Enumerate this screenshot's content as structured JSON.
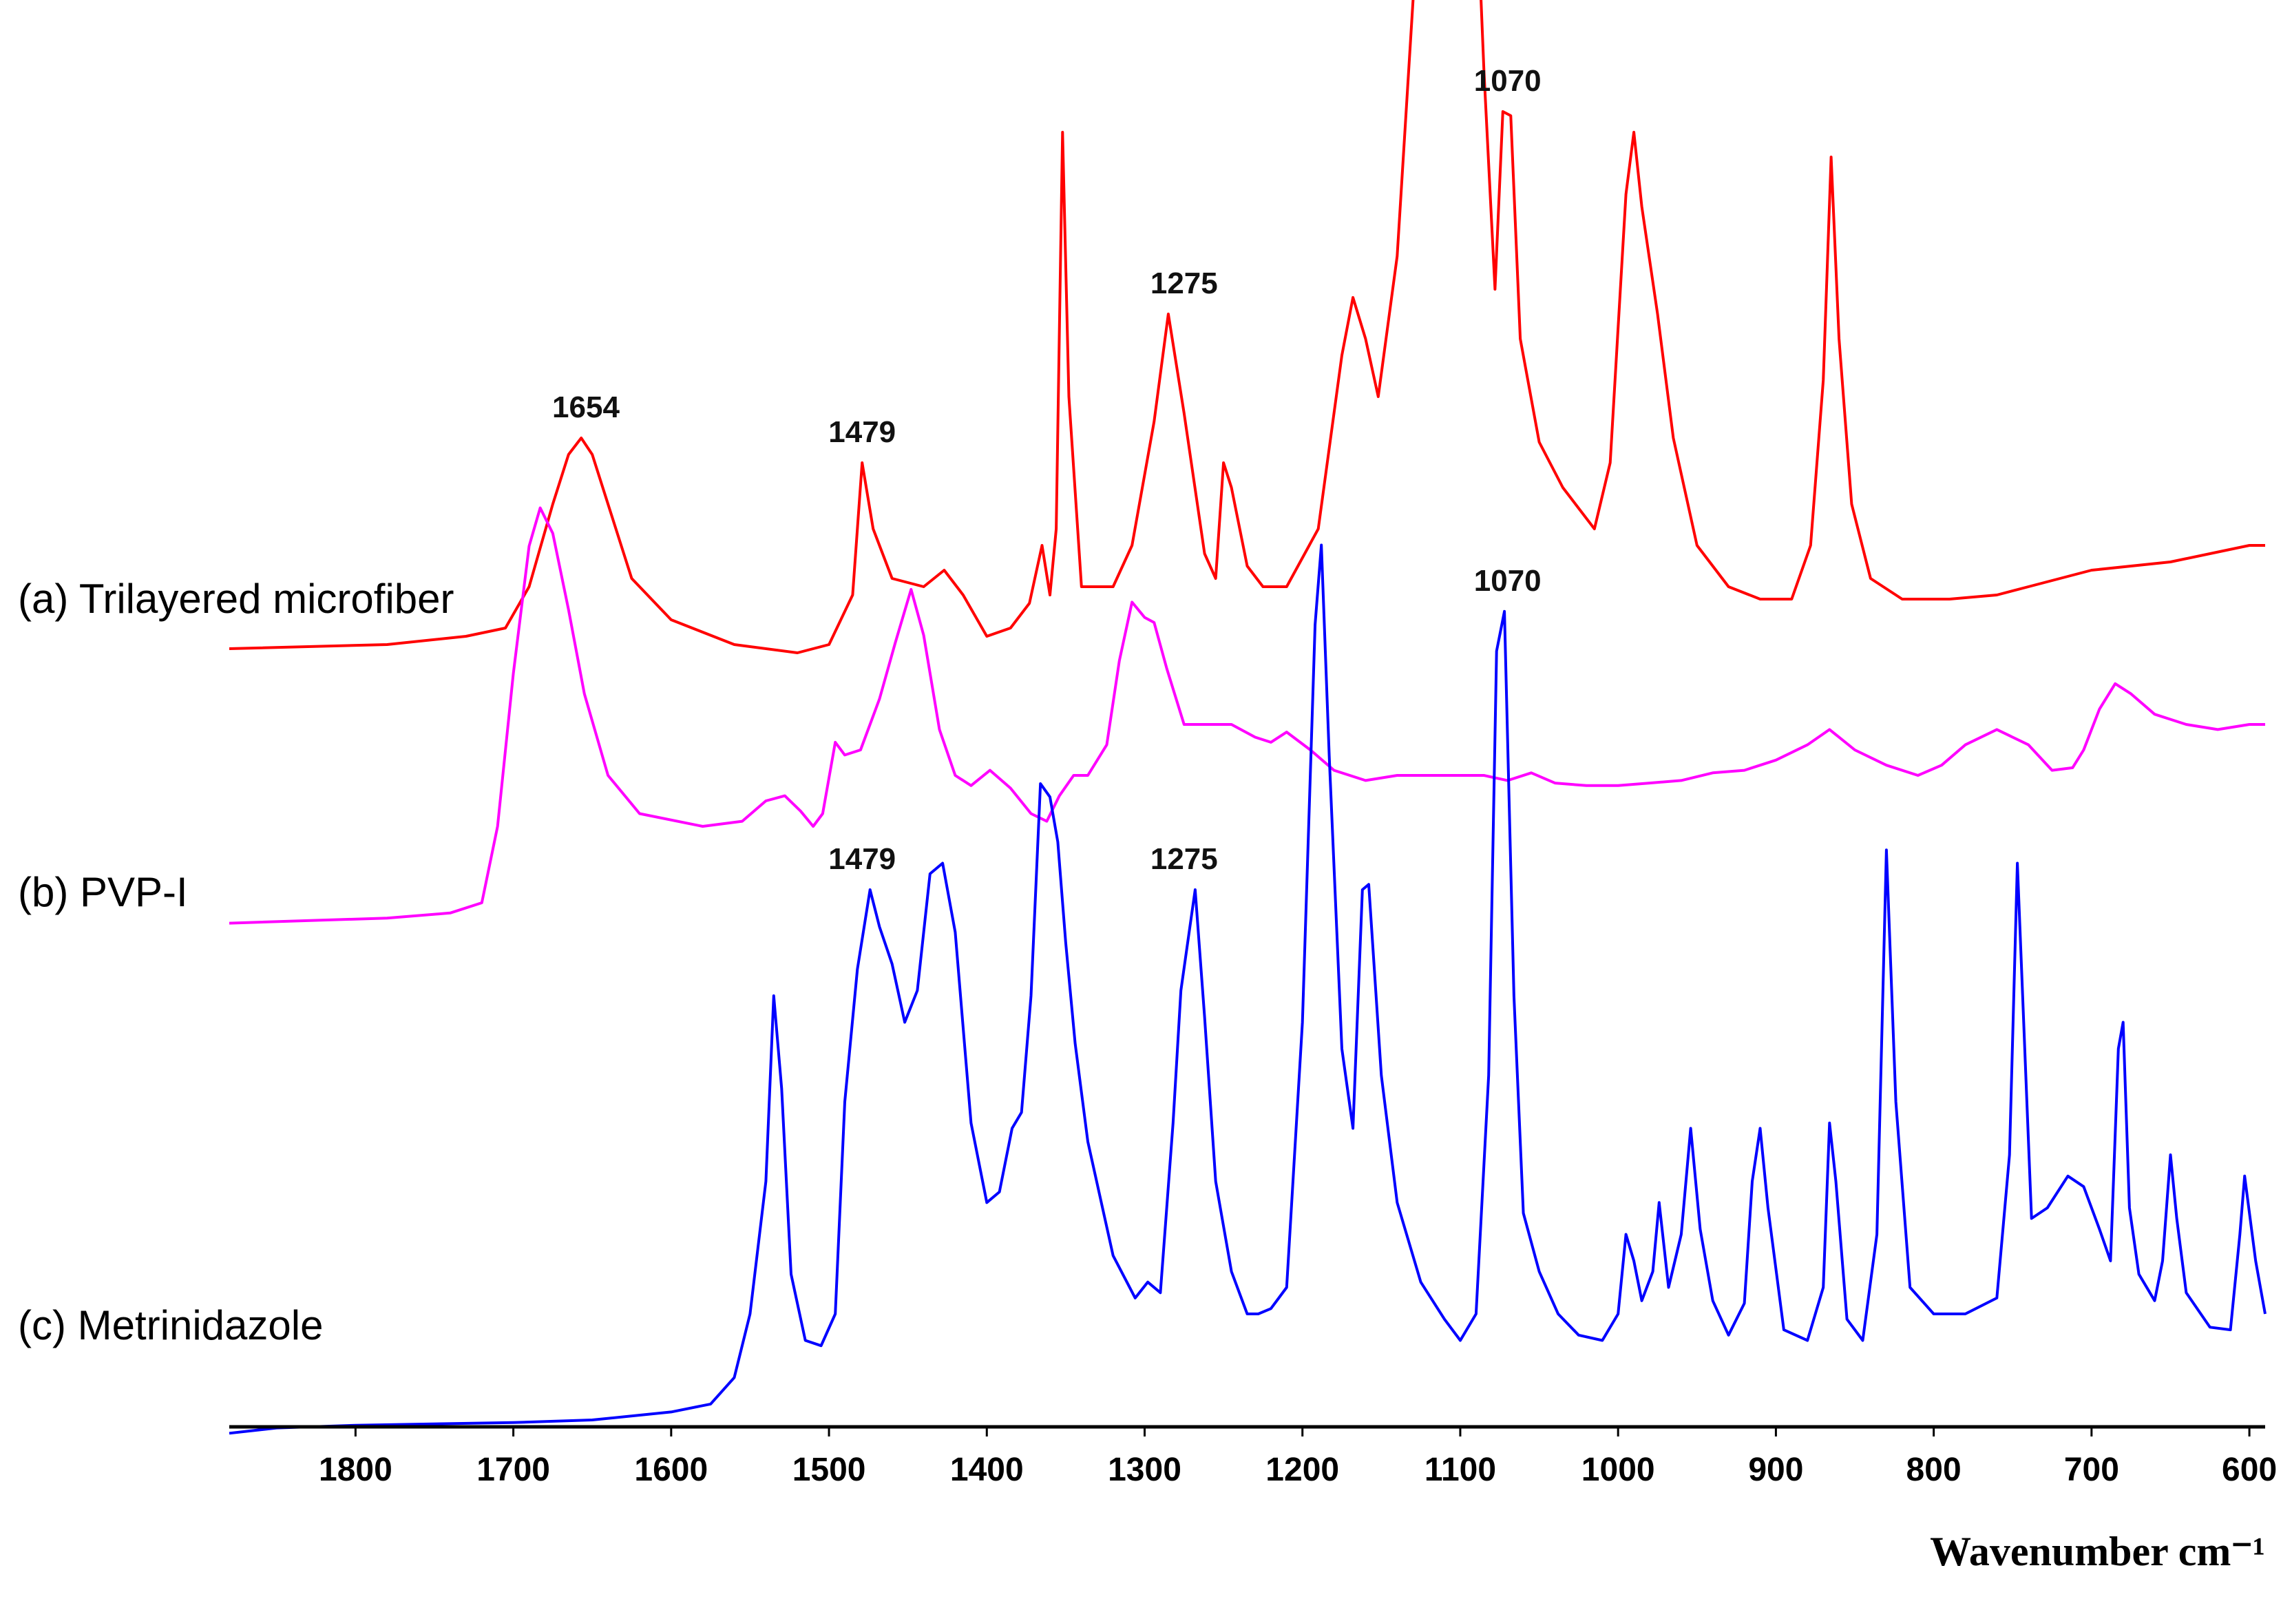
{
  "chart_data": {
    "type": "line",
    "xlabel": "Wavenumber cm⁻¹",
    "x_reversed": true,
    "xlim": [
      1880,
      590
    ],
    "x_ticks": [
      1800,
      1700,
      1600,
      1500,
      1400,
      1300,
      1200,
      1100,
      1000,
      900,
      800,
      700,
      600
    ],
    "grid": false,
    "y_axis_shown": false,
    "series": [
      {
        "name": "(a) Trilayered microfiber",
        "color": "#ff0000",
        "points": [
          [
            1880,
            0.05
          ],
          [
            1780,
            0.06
          ],
          [
            1730,
            0.08
          ],
          [
            1705,
            0.1
          ],
          [
            1690,
            0.2
          ],
          [
            1675,
            0.4
          ],
          [
            1665,
            0.52
          ],
          [
            1657,
            0.56
          ],
          [
            1650,
            0.52
          ],
          [
            1640,
            0.4
          ],
          [
            1625,
            0.22
          ],
          [
            1600,
            0.12
          ],
          [
            1560,
            0.06
          ],
          [
            1520,
            0.04
          ],
          [
            1500,
            0.06
          ],
          [
            1485,
            0.18
          ],
          [
            1479,
            0.5
          ],
          [
            1472,
            0.34
          ],
          [
            1460,
            0.22
          ],
          [
            1440,
            0.2
          ],
          [
            1427,
            0.24
          ],
          [
            1415,
            0.18
          ],
          [
            1400,
            0.08
          ],
          [
            1385,
            0.1
          ],
          [
            1373,
            0.16
          ],
          [
            1365,
            0.3
          ],
          [
            1360,
            0.18
          ],
          [
            1356,
            0.34
          ],
          [
            1352,
            1.3
          ],
          [
            1348,
            0.66
          ],
          [
            1340,
            0.2
          ],
          [
            1320,
            0.2
          ],
          [
            1308,
            0.3
          ],
          [
            1294,
            0.6
          ],
          [
            1285,
            0.86
          ],
          [
            1275,
            0.62
          ],
          [
            1262,
            0.28
          ],
          [
            1255,
            0.22
          ],
          [
            1250,
            0.5
          ],
          [
            1245,
            0.44
          ],
          [
            1235,
            0.25
          ],
          [
            1225,
            0.2
          ],
          [
            1210,
            0.2
          ],
          [
            1190,
            0.34
          ],
          [
            1175,
            0.76
          ],
          [
            1168,
            0.9
          ],
          [
            1160,
            0.8
          ],
          [
            1152,
            0.66
          ],
          [
            1140,
            1.0
          ],
          [
            1127,
            1.8
          ],
          [
            1115,
            2.6
          ],
          [
            1106,
            3.24
          ],
          [
            1100,
            3.0
          ],
          [
            1092,
            2.1
          ],
          [
            1085,
            1.45
          ],
          [
            1078,
            0.92
          ],
          [
            1073,
            1.35
          ],
          [
            1068,
            1.34
          ],
          [
            1062,
            0.8
          ],
          [
            1050,
            0.55
          ],
          [
            1035,
            0.44
          ],
          [
            1015,
            0.34
          ],
          [
            1005,
            0.5
          ],
          [
            995,
            1.15
          ],
          [
            990,
            1.3
          ],
          [
            985,
            1.12
          ],
          [
            975,
            0.86
          ],
          [
            965,
            0.56
          ],
          [
            950,
            0.3
          ],
          [
            930,
            0.2
          ],
          [
            910,
            0.17
          ],
          [
            890,
            0.17
          ],
          [
            878,
            0.3
          ],
          [
            870,
            0.7
          ],
          [
            865,
            1.24
          ],
          [
            860,
            0.8
          ],
          [
            852,
            0.4
          ],
          [
            840,
            0.22
          ],
          [
            820,
            0.17
          ],
          [
            790,
            0.17
          ],
          [
            760,
            0.18
          ],
          [
            740,
            0.2
          ],
          [
            700,
            0.24
          ],
          [
            650,
            0.26
          ],
          [
            600,
            0.3
          ],
          [
            590,
            0.3
          ]
        ]
      },
      {
        "name": "(b) PVP-I",
        "color": "#ff00ff",
        "points": [
          [
            1880,
            0.02
          ],
          [
            1780,
            0.04
          ],
          [
            1740,
            0.06
          ],
          [
            1720,
            0.1
          ],
          [
            1710,
            0.4
          ],
          [
            1700,
            1.0
          ],
          [
            1690,
            1.5
          ],
          [
            1683,
            1.65
          ],
          [
            1675,
            1.55
          ],
          [
            1665,
            1.25
          ],
          [
            1655,
            0.92
          ],
          [
            1640,
            0.6
          ],
          [
            1620,
            0.45
          ],
          [
            1580,
            0.4
          ],
          [
            1555,
            0.42
          ],
          [
            1540,
            0.5
          ],
          [
            1528,
            0.52
          ],
          [
            1518,
            0.46
          ],
          [
            1510,
            0.4
          ],
          [
            1504,
            0.45
          ],
          [
            1496,
            0.73
          ],
          [
            1490,
            0.68
          ],
          [
            1480,
            0.7
          ],
          [
            1468,
            0.9
          ],
          [
            1458,
            1.12
          ],
          [
            1448,
            1.33
          ],
          [
            1440,
            1.15
          ],
          [
            1430,
            0.78
          ],
          [
            1420,
            0.6
          ],
          [
            1410,
            0.56
          ],
          [
            1398,
            0.62
          ],
          [
            1385,
            0.55
          ],
          [
            1372,
            0.45
          ],
          [
            1362,
            0.42
          ],
          [
            1354,
            0.52
          ],
          [
            1345,
            0.6
          ],
          [
            1336,
            0.6
          ],
          [
            1324,
            0.72
          ],
          [
            1316,
            1.05
          ],
          [
            1308,
            1.28
          ],
          [
            1300,
            1.22
          ],
          [
            1294,
            1.2
          ],
          [
            1286,
            1.02
          ],
          [
            1275,
            0.8
          ],
          [
            1260,
            0.8
          ],
          [
            1245,
            0.8
          ],
          [
            1230,
            0.75
          ],
          [
            1220,
            0.73
          ],
          [
            1210,
            0.77
          ],
          [
            1195,
            0.7
          ],
          [
            1180,
            0.62
          ],
          [
            1160,
            0.58
          ],
          [
            1140,
            0.6
          ],
          [
            1120,
            0.6
          ],
          [
            1100,
            0.6
          ],
          [
            1085,
            0.6
          ],
          [
            1070,
            0.58
          ],
          [
            1055,
            0.61
          ],
          [
            1040,
            0.57
          ],
          [
            1020,
            0.56
          ],
          [
            1000,
            0.56
          ],
          [
            980,
            0.57
          ],
          [
            960,
            0.58
          ],
          [
            940,
            0.61
          ],
          [
            920,
            0.62
          ],
          [
            900,
            0.66
          ],
          [
            880,
            0.72
          ],
          [
            866,
            0.78
          ],
          [
            850,
            0.7
          ],
          [
            830,
            0.64
          ],
          [
            810,
            0.6
          ],
          [
            795,
            0.64
          ],
          [
            780,
            0.72
          ],
          [
            760,
            0.78
          ],
          [
            740,
            0.72
          ],
          [
            725,
            0.62
          ],
          [
            712,
            0.63
          ],
          [
            705,
            0.7
          ],
          [
            695,
            0.86
          ],
          [
            685,
            0.96
          ],
          [
            675,
            0.92
          ],
          [
            660,
            0.84
          ],
          [
            650,
            0.82
          ],
          [
            640,
            0.8
          ],
          [
            620,
            0.78
          ],
          [
            600,
            0.8
          ],
          [
            590,
            0.8
          ]
        ]
      },
      {
        "name": "(c) Metrinidazole",
        "color": "#0000ff",
        "points": [
          [
            1880,
            -0.05
          ],
          [
            1850,
            -0.03
          ],
          [
            1800,
            -0.02
          ],
          [
            1700,
            -0.01
          ],
          [
            1650,
            0
          ],
          [
            1600,
            0.03
          ],
          [
            1575,
            0.06
          ],
          [
            1560,
            0.16
          ],
          [
            1550,
            0.4
          ],
          [
            1540,
            0.9
          ],
          [
            1535,
            1.6
          ],
          [
            1530,
            1.25
          ],
          [
            1524,
            0.55
          ],
          [
            1515,
            0.3
          ],
          [
            1505,
            0.28
          ],
          [
            1496,
            0.4
          ],
          [
            1490,
            1.2
          ],
          [
            1482,
            1.7
          ],
          [
            1474,
            2.0
          ],
          [
            1468,
            1.86
          ],
          [
            1460,
            1.72
          ],
          [
            1452,
            1.5
          ],
          [
            1444,
            1.62
          ],
          [
            1436,
            2.06
          ],
          [
            1428,
            2.1
          ],
          [
            1420,
            1.84
          ],
          [
            1410,
            1.12
          ],
          [
            1400,
            0.82
          ],
          [
            1392,
            0.86
          ],
          [
            1384,
            1.1
          ],
          [
            1378,
            1.16
          ],
          [
            1372,
            1.6
          ],
          [
            1366,
            2.4
          ],
          [
            1360,
            2.35
          ],
          [
            1355,
            2.18
          ],
          [
            1350,
            1.8
          ],
          [
            1344,
            1.42
          ],
          [
            1336,
            1.05
          ],
          [
            1320,
            0.62
          ],
          [
            1306,
            0.46
          ],
          [
            1298,
            0.52
          ],
          [
            1290,
            0.48
          ],
          [
            1282,
            1.12
          ],
          [
            1277,
            1.62
          ],
          [
            1268,
            2.0
          ],
          [
            1262,
            1.52
          ],
          [
            1255,
            0.9
          ],
          [
            1245,
            0.56
          ],
          [
            1235,
            0.4
          ],
          [
            1228,
            0.4
          ],
          [
            1220,
            0.42
          ],
          [
            1210,
            0.5
          ],
          [
            1200,
            1.5
          ],
          [
            1192,
            3.0
          ],
          [
            1188,
            3.3
          ],
          [
            1183,
            2.5
          ],
          [
            1175,
            1.4
          ],
          [
            1168,
            1.1
          ],
          [
            1162,
            2.0
          ],
          [
            1158,
            2.02
          ],
          [
            1150,
            1.3
          ],
          [
            1140,
            0.82
          ],
          [
            1125,
            0.52
          ],
          [
            1110,
            0.38
          ],
          [
            1100,
            0.3
          ],
          [
            1090,
            0.4
          ],
          [
            1082,
            1.3
          ],
          [
            1077,
            2.9
          ],
          [
            1072,
            3.05
          ],
          [
            1066,
            1.6
          ],
          [
            1060,
            0.78
          ],
          [
            1050,
            0.56
          ],
          [
            1038,
            0.4
          ],
          [
            1025,
            0.32
          ],
          [
            1010,
            0.3
          ],
          [
            1000,
            0.4
          ],
          [
            995,
            0.7
          ],
          [
            990,
            0.6
          ],
          [
            985,
            0.45
          ],
          [
            978,
            0.56
          ],
          [
            974,
            0.82
          ],
          [
            968,
            0.5
          ],
          [
            960,
            0.7
          ],
          [
            954,
            1.1
          ],
          [
            948,
            0.72
          ],
          [
            940,
            0.45
          ],
          [
            930,
            0.32
          ],
          [
            920,
            0.44
          ],
          [
            915,
            0.9
          ],
          [
            910,
            1.1
          ],
          [
            905,
            0.8
          ],
          [
            895,
            0.34
          ],
          [
            880,
            0.3
          ],
          [
            870,
            0.5
          ],
          [
            866,
            1.12
          ],
          [
            862,
            0.9
          ],
          [
            855,
            0.38
          ],
          [
            845,
            0.3
          ],
          [
            836,
            0.7
          ],
          [
            830,
            2.15
          ],
          [
            824,
            1.2
          ],
          [
            815,
            0.5
          ],
          [
            800,
            0.4
          ],
          [
            780,
            0.4
          ],
          [
            760,
            0.46
          ],
          [
            752,
            1.0
          ],
          [
            747,
            2.1
          ],
          [
            742,
            1.35
          ],
          [
            738,
            0.76
          ],
          [
            728,
            0.8
          ],
          [
            715,
            0.92
          ],
          [
            705,
            0.88
          ],
          [
            695,
            0.72
          ],
          [
            688,
            0.6
          ],
          [
            683,
            1.4
          ],
          [
            680,
            1.5
          ],
          [
            676,
            0.8
          ],
          [
            670,
            0.55
          ],
          [
            660,
            0.45
          ],
          [
            655,
            0.6
          ],
          [
            650,
            1.0
          ],
          [
            646,
            0.76
          ],
          [
            640,
            0.48
          ],
          [
            625,
            0.35
          ],
          [
            612,
            0.34
          ],
          [
            606,
            0.7
          ],
          [
            603,
            0.92
          ],
          [
            596,
            0.6
          ],
          [
            590,
            0.4
          ]
        ]
      }
    ],
    "peak_labels": [
      {
        "series": 0,
        "x": 1654,
        "text": "1654"
      },
      {
        "series": 0,
        "x": 1479,
        "text": "1479"
      },
      {
        "series": 0,
        "x": 1275,
        "text": "1275"
      },
      {
        "series": 0,
        "x": 1070,
        "text": "1070"
      },
      {
        "series": 2,
        "x": 1479,
        "text": "1479"
      },
      {
        "series": 2,
        "x": 1275,
        "text": "1275"
      },
      {
        "series": 2,
        "x": 1070,
        "text": "1070"
      }
    ]
  }
}
